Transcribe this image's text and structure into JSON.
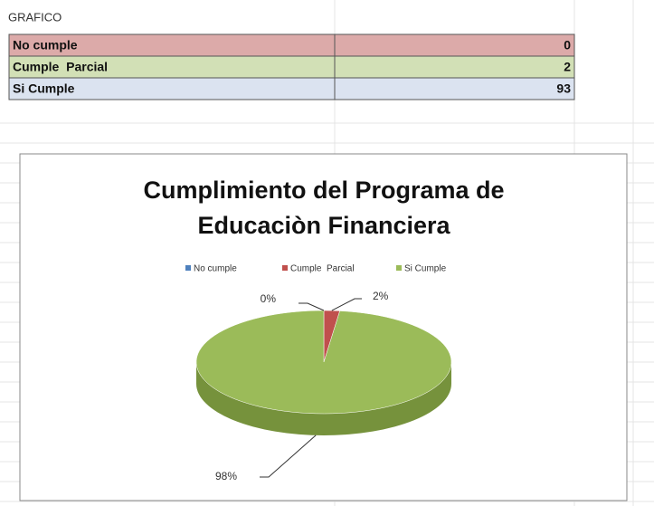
{
  "sheet": {
    "title": "GRAFICO",
    "rows": [
      [
        "No cumple",
        0
      ],
      [
        "Cumple  Parcial",
        2
      ],
      [
        "Si Cumple",
        93
      ]
    ]
  },
  "chart_data": {
    "type": "pie",
    "title": "Cumplimiento del Programa de Educaciòn Financiera",
    "categories": [
      "No cumple",
      "Cumple  Parcial",
      "Si Cumple"
    ],
    "values": [
      0,
      2,
      98
    ],
    "value_labels": [
      "0%",
      "2%",
      "98%"
    ],
    "colors": [
      "#4f81bd",
      "#c0504d",
      "#9bbb59"
    ],
    "legend": "top"
  }
}
